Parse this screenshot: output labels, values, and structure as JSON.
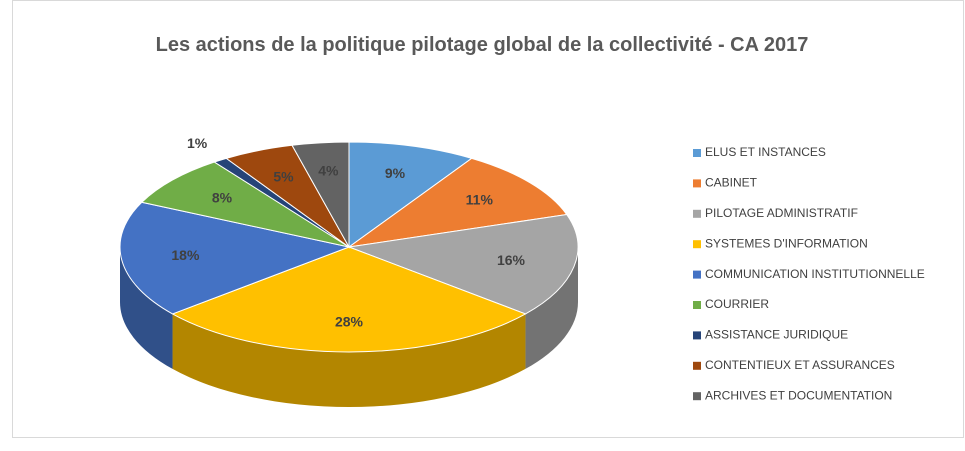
{
  "chart_data": {
    "type": "pie3d",
    "title": "Les actions de la politique pilotage global de la collectivité - CA 2017",
    "categories": [
      "ELUS ET INSTANCES",
      "CABINET",
      "PILOTAGE ADMINISTRATIF",
      "SYSTEMES D'INFORMATION",
      "COMMUNICATION INSTITUTIONNELLE",
      "COURRIER",
      "ASSISTANCE JURIDIQUE",
      "CONTENTIEUX ET ASSURANCES",
      "ARCHIVES ET DOCUMENTATION"
    ],
    "values": [
      9,
      11,
      16,
      28,
      18,
      8,
      1,
      5,
      4
    ],
    "value_labels": [
      "9%",
      "11%",
      "16%",
      "28%",
      "18%",
      "8%",
      "1%",
      "5%",
      "4%"
    ],
    "colors": [
      "#5b9bd5",
      "#ed7d31",
      "#a5a5a5",
      "#ffc000",
      "#4472c4",
      "#70ad47",
      "#264478",
      "#9e480e",
      "#636363"
    ],
    "legend": "right"
  }
}
